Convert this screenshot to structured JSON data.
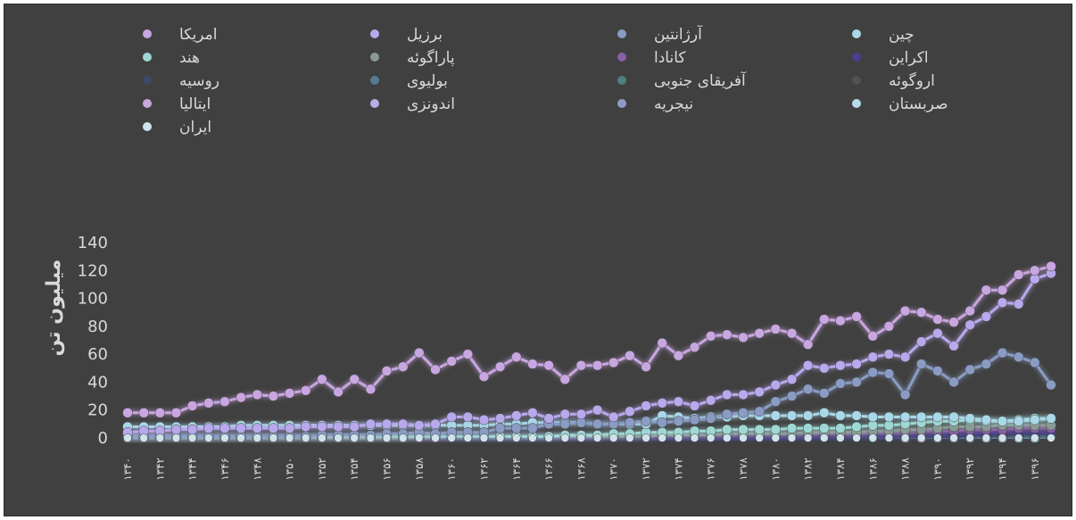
{
  "chart_data": {
    "type": "line",
    "ylabel": "میلیون تن",
    "xlabel": "",
    "ylim": [
      0,
      140
    ],
    "yticks": [
      "0",
      "20",
      "40",
      "60",
      "80",
      "100",
      "120",
      "140"
    ],
    "grid": false,
    "legend_position": "top",
    "x": [
      "۱۳۴۰",
      "۱۳۴۱",
      "۱۳۴۲",
      "۱۳۴۳",
      "۱۳۴۴",
      "۱۳۴۵",
      "۱۳۴۶",
      "۱۳۴۷",
      "۱۳۴۸",
      "۱۳۴۹",
      "۱۳۵۰",
      "۱۳۵۱",
      "۱۳۵۲",
      "۱۳۵۳",
      "۱۳۵۴",
      "۱۳۵۵",
      "۱۳۵۶",
      "۱۳۵۷",
      "۱۳۵۸",
      "۱۳۵۹",
      "۱۳۶۰",
      "۱۳۶۱",
      "۱۳۶۲",
      "۱۳۶۳",
      "۱۳۶۴",
      "۱۳۶۵",
      "۱۳۶۶",
      "۱۳۶۷",
      "۱۳۶۸",
      "۱۳۶۹",
      "۱۳۷۰",
      "۱۳۷۱",
      "۱۳۷۲",
      "۱۳۷۳",
      "۱۳۷۴",
      "۱۳۷۵",
      "۱۳۷۶",
      "۱۳۷۷",
      "۱۳۷۸",
      "۱۳۷۹",
      "۱۳۸۰",
      "۱۳۸۱",
      "۱۳۸۲",
      "۱۳۸۳",
      "۱۳۸۴",
      "۱۳۸۵",
      "۱۳۸۶",
      "۱۳۸۷",
      "۱۳۸۸",
      "۱۳۸۹",
      "۱۳۹۰",
      "۱۳۹۱",
      "۱۳۹۲",
      "۱۳۹۳",
      "۱۳۹۴",
      "۱۳۹۵",
      "۱۳۹۶",
      "۱۳۹۷"
    ],
    "x_tick_labels": [
      "۱۳۴۰",
      "۱۳۴۲",
      "۱۳۴۴",
      "۱۳۴۶",
      "۱۳۴۸",
      "۱۳۵۰",
      "۱۳۵۲",
      "۱۳۵۴",
      "۱۳۵۶",
      "۱۳۵۸",
      "۱۳۶۰",
      "۱۳۶۲",
      "۱۳۶۴",
      "۱۳۶۶",
      "۱۳۶۸",
      "۱۳۷۰",
      "۱۳۷۲",
      "۱۳۷۴",
      "۱۳۷۶",
      "۱۳۷۸",
      "۱۳۸۰",
      "۱۳۸۲",
      "۱۳۸۴",
      "۱۳۸۶",
      "۱۳۸۸",
      "۱۳۹۰",
      "۱۳۹۲",
      "۱۳۹۴",
      "۱۳۹۶"
    ],
    "series": [
      {
        "name": "امریکا",
        "color": "#c8a6e0",
        "values": [
          18,
          18,
          18,
          18,
          23,
          25,
          26,
          29,
          31,
          30,
          32,
          34,
          42,
          33,
          42,
          35,
          48,
          51,
          61,
          49,
          55,
          60,
          44,
          51,
          58,
          53,
          52,
          42,
          52,
          52,
          54,
          59,
          51,
          68,
          59,
          65,
          73,
          74,
          72,
          75,
          78,
          75,
          67,
          85,
          84,
          87,
          73,
          80,
          91,
          90,
          85,
          83,
          91,
          106,
          106,
          117,
          120,
          123
        ]
      },
      {
        "name": "برزیل",
        "color": "#b8a8ec",
        "values": [
          4,
          5,
          5,
          6,
          6,
          7,
          7,
          7,
          7,
          7,
          7,
          8,
          8,
          8,
          8,
          10,
          10,
          10,
          9,
          10,
          15,
          15,
          13,
          14,
          16,
          18,
          14,
          17,
          17,
          20,
          15,
          19,
          23,
          25,
          26,
          23,
          27,
          31,
          31,
          33,
          38,
          42,
          52,
          50,
          52,
          53,
          58,
          60,
          58,
          69,
          75,
          66,
          81,
          87,
          97,
          96,
          114,
          118
        ]
      },
      {
        "name": "آرژانتین",
        "color": "#8a9cc4",
        "values": [
          1,
          1,
          1,
          1,
          1,
          1,
          1,
          1,
          1,
          1,
          1,
          1,
          2,
          2,
          2,
          2,
          3,
          3,
          4,
          3,
          4,
          4,
          4,
          7,
          7,
          7,
          10,
          10,
          11,
          10,
          10,
          11,
          12,
          11,
          12,
          13,
          14,
          17,
          18,
          19,
          26,
          30,
          35,
          32,
          39,
          40,
          47,
          46,
          31,
          53,
          48,
          40,
          49,
          53,
          61,
          58,
          54,
          38
        ]
      },
      {
        "name": "چین",
        "color": "#a9d8e8",
        "values": [
          8,
          8,
          8,
          8,
          8,
          8,
          8,
          9,
          9,
          9,
          9,
          9,
          9,
          9,
          9,
          9,
          9,
          9,
          9,
          9,
          9,
          9,
          9,
          10,
          10,
          11,
          11,
          11,
          11,
          10,
          10,
          10,
          10,
          16,
          15,
          14,
          15,
          15,
          16,
          16,
          16,
          16,
          16,
          18,
          16,
          16,
          15,
          15,
          15,
          15,
          15,
          15,
          14,
          13,
          12,
          12,
          13,
          14
        ]
      },
      {
        "name": "هند",
        "color": "#9ed8d4",
        "values": [
          1,
          1,
          1,
          1,
          1,
          1,
          1,
          1,
          1,
          1,
          1,
          1,
          1,
          1,
          1,
          1,
          1,
          1,
          1,
          1,
          1,
          1,
          1,
          1,
          1,
          1,
          1,
          2,
          2,
          2,
          3,
          3,
          4,
          4,
          4,
          5,
          5,
          6,
          6,
          6,
          6,
          7,
          7,
          7,
          7,
          8,
          9,
          9,
          10,
          11,
          12,
          12,
          13,
          12,
          12,
          13,
          14,
          14
        ]
      },
      {
        "name": "پاراگوئه",
        "color": "#8a9a96",
        "values": [
          0,
          0,
          0,
          0,
          0,
          0,
          0,
          0,
          0,
          0,
          0,
          0,
          0,
          0,
          0,
          0,
          0,
          0,
          1,
          1,
          1,
          1,
          1,
          1,
          1,
          1,
          1,
          1,
          1,
          1,
          1,
          1,
          1,
          2,
          2,
          2,
          2,
          3,
          3,
          3,
          3,
          3,
          4,
          4,
          4,
          4,
          5,
          5,
          6,
          6,
          7,
          8,
          8,
          8,
          9,
          9,
          9,
          9
        ]
      },
      {
        "name": "کانادا",
        "color": "#8a5fa8",
        "values": [
          0,
          0,
          0,
          0,
          0,
          0,
          0,
          0,
          0,
          0,
          0,
          0,
          0,
          0,
          0,
          0,
          0,
          0,
          0,
          0,
          1,
          1,
          1,
          1,
          1,
          1,
          1,
          1,
          1,
          1,
          1,
          1,
          1,
          2,
          2,
          2,
          2,
          2,
          3,
          3,
          3,
          3,
          3,
          3,
          3,
          3,
          4,
          4,
          4,
          5,
          5,
          5,
          6,
          6,
          6,
          7,
          7,
          7
        ]
      },
      {
        "name": "اکراین",
        "color": "#4a3f8c",
        "values": [
          0,
          0,
          0,
          0,
          0,
          0,
          0,
          0,
          0,
          0,
          0,
          0,
          0,
          0,
          0,
          0,
          0,
          0,
          0,
          0,
          0,
          0,
          0,
          0,
          0,
          0,
          0,
          0,
          0,
          0,
          0,
          0,
          0,
          0,
          0,
          0,
          0,
          0,
          0,
          0,
          0,
          0,
          0,
          1,
          1,
          1,
          1,
          1,
          1,
          2,
          2,
          2,
          3,
          3,
          4,
          4,
          4,
          4
        ]
      },
      {
        "name": "روسیه",
        "color": "#3c4866",
        "values": [
          0,
          0,
          0,
          0,
          0,
          0,
          0,
          0,
          0,
          0,
          0,
          0,
          0,
          0,
          0,
          0,
          0,
          0,
          0,
          0,
          0,
          0,
          0,
          0,
          0,
          0,
          0,
          0,
          0,
          0,
          0,
          0,
          0,
          0,
          0,
          0,
          0,
          0,
          0,
          0,
          0,
          0,
          0,
          0,
          0,
          0,
          1,
          1,
          1,
          1,
          1,
          1,
          2,
          2,
          2,
          3,
          3,
          4
        ]
      },
      {
        "name": "بولیوی",
        "color": "#557a94",
        "values": [
          0,
          0,
          0,
          0,
          0,
          0,
          0,
          0,
          0,
          0,
          0,
          0,
          0,
          0,
          0,
          0,
          0,
          0,
          0,
          0,
          0,
          0,
          0,
          0,
          0,
          0,
          0,
          0,
          0,
          0,
          0,
          0,
          0,
          1,
          1,
          1,
          1,
          1,
          1,
          1,
          1,
          1,
          1,
          1,
          2,
          2,
          2,
          2,
          2,
          2,
          2,
          2,
          2,
          3,
          3,
          3,
          3,
          3
        ]
      },
      {
        "name": "آفریقای جنوبی",
        "color": "#4f7f82",
        "values": [
          0,
          0,
          0,
          0,
          0,
          0,
          0,
          0,
          0,
          0,
          0,
          0,
          0,
          0,
          0,
          0,
          0,
          0,
          0,
          0,
          0,
          0,
          0,
          0,
          0,
          0,
          0,
          0,
          0,
          0,
          0,
          0,
          0,
          0,
          0,
          0,
          0,
          0,
          0,
          0,
          0,
          0,
          0,
          0,
          0,
          0,
          0,
          1,
          1,
          1,
          1,
          1,
          1,
          1,
          1,
          1,
          1,
          1
        ]
      },
      {
        "name": "اروگوئه",
        "color": "#4c5352",
        "values": [
          0,
          0,
          0,
          0,
          0,
          0,
          0,
          0,
          0,
          0,
          0,
          0,
          0,
          0,
          0,
          0,
          0,
          0,
          0,
          0,
          0,
          0,
          0,
          0,
          0,
          0,
          0,
          0,
          0,
          0,
          0,
          0,
          0,
          0,
          0,
          0,
          0,
          0,
          0,
          0,
          0,
          0,
          0,
          0,
          0,
          0,
          0,
          0,
          1,
          1,
          1,
          1,
          1,
          1,
          1,
          1,
          1,
          1
        ]
      },
      {
        "name": "ایتالیا",
        "color": "#c8a8d8",
        "values": [
          0,
          0,
          0,
          0,
          0,
          0,
          0,
          0,
          0,
          0,
          0,
          0,
          0,
          0,
          0,
          0,
          0,
          0,
          0,
          0,
          0,
          0,
          0,
          0,
          0,
          0,
          0,
          0,
          0,
          0,
          1,
          1,
          1,
          1,
          1,
          1,
          1,
          1,
          1,
          1,
          1,
          1,
          1,
          1,
          1,
          1,
          1,
          1,
          1,
          1,
          1,
          1,
          1,
          1,
          1,
          1,
          1,
          1
        ]
      },
      {
        "name": "اندونزی",
        "color": "#b6aee4",
        "values": [
          0,
          0,
          0,
          0,
          0,
          0,
          0,
          0,
          0,
          0,
          0,
          0,
          0,
          0,
          0,
          0,
          0,
          0,
          0,
          0,
          0,
          0,
          0,
          0,
          0,
          0,
          0,
          0,
          0,
          0,
          0,
          0,
          0,
          0,
          0,
          0,
          0,
          0,
          0,
          0,
          0,
          0,
          0,
          0,
          0,
          0,
          0,
          0,
          0,
          0,
          1,
          1,
          1,
          1,
          1,
          1,
          1,
          1
        ]
      },
      {
        "name": "نیجریه",
        "color": "#8f9cc2",
        "values": [
          0,
          0,
          0,
          0,
          0,
          0,
          0,
          0,
          0,
          0,
          0,
          0,
          0,
          0,
          0,
          0,
          0,
          0,
          0,
          0,
          0,
          0,
          0,
          0,
          0,
          0,
          0,
          0,
          0,
          0,
          0,
          0,
          0,
          0,
          0,
          0,
          0,
          0,
          0,
          0,
          0,
          0,
          0,
          0,
          0,
          0,
          0,
          0,
          0,
          0,
          0,
          0,
          0,
          1,
          1,
          1,
          1,
          1
        ]
      },
      {
        "name": "صربستان",
        "color": "#b4dcec",
        "values": [
          0,
          0,
          0,
          0,
          0,
          0,
          0,
          0,
          0,
          0,
          0,
          0,
          0,
          0,
          0,
          0,
          0,
          0,
          0,
          0,
          0,
          0,
          0,
          0,
          0,
          0,
          0,
          0,
          0,
          0,
          0,
          0,
          0,
          0,
          0,
          0,
          0,
          0,
          0,
          0,
          0,
          0,
          0,
          0,
          0,
          0,
          0,
          0,
          0,
          0,
          0,
          0,
          0,
          0,
          0,
          0,
          0,
          1
        ]
      },
      {
        "name": "ایران",
        "color": "#ffffff",
        "values": [
          0,
          0,
          0,
          0,
          0,
          0,
          0,
          0,
          0,
          0,
          0,
          0,
          0,
          0,
          0,
          0,
          0,
          0,
          0,
          0,
          0,
          0,
          0,
          0,
          0,
          0,
          0,
          0,
          0,
          0,
          0,
          0,
          0,
          0,
          0,
          0,
          0,
          0,
          0,
          0,
          0,
          0,
          0,
          0,
          0,
          0,
          0,
          0,
          0,
          0,
          0,
          0,
          0,
          0,
          0,
          0,
          0,
          0
        ]
      }
    ]
  }
}
